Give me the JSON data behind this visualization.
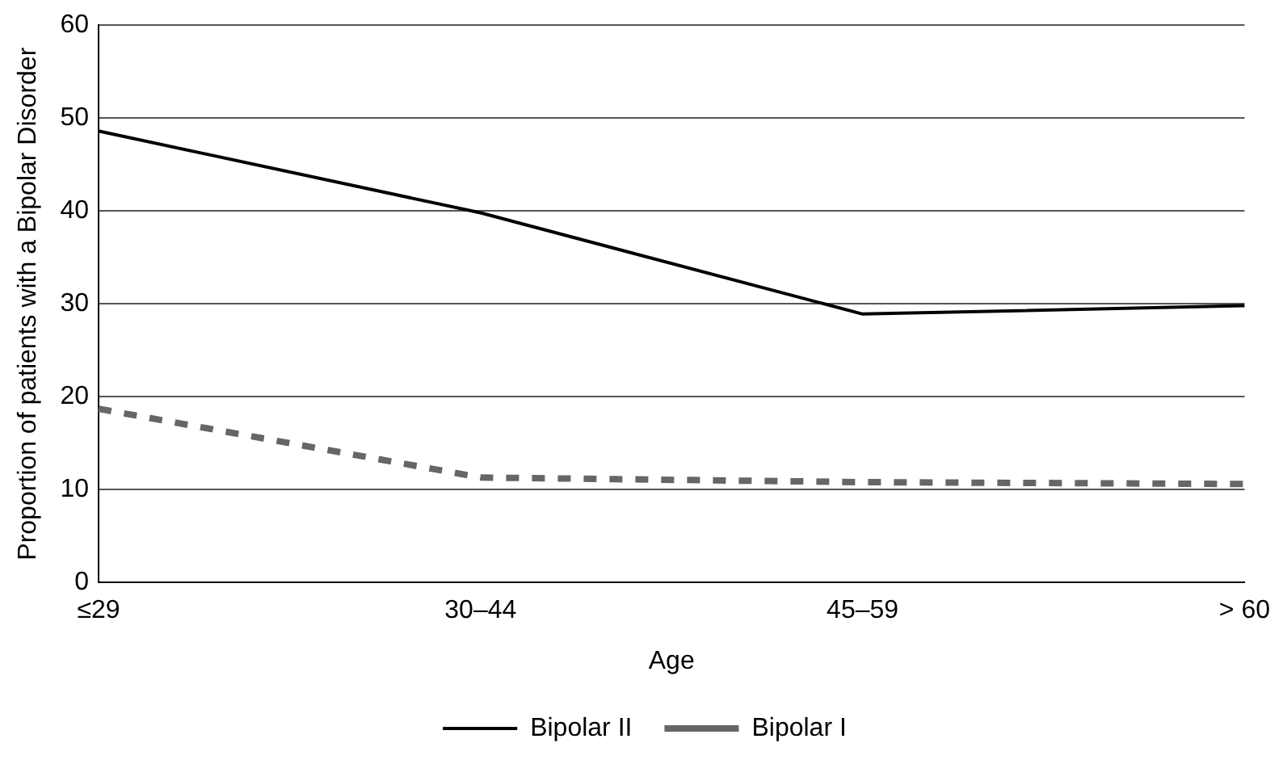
{
  "chart_data": {
    "type": "line",
    "xlabel": "Age",
    "ylabel": "Proportion of patients with a Bipolar Disorder",
    "categories": [
      "≤29",
      "30–44",
      "45–59",
      "> 60"
    ],
    "series": [
      {
        "name": "Bipolar II",
        "color": "#000000",
        "line_style": "solid",
        "values": [
          48.6,
          39.8,
          28.9,
          29.8
        ]
      },
      {
        "name": "Bipolar I",
        "color": "#666666",
        "line_style": "dashed",
        "values": [
          18.7,
          11.3,
          10.8,
          10.6
        ]
      }
    ],
    "ylim": [
      0,
      60
    ],
    "yticks": [
      0,
      10,
      20,
      30,
      40,
      50,
      60
    ],
    "grid": "y",
    "legend": "bottom",
    "marker": "none"
  }
}
